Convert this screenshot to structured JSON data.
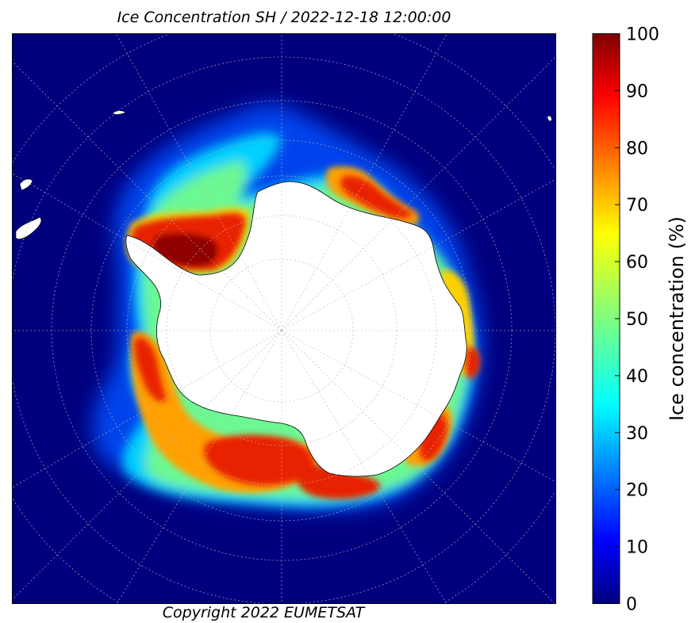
{
  "title": "Ice Concentration SH / 2022-12-18 12:00:00",
  "copyright": "Copyright 2022 EUMETSAT",
  "colorbar": {
    "label": "Ice concentration (%)",
    "ticks": [
      "0",
      "10",
      "20",
      "30",
      "40",
      "50",
      "60",
      "70",
      "80",
      "90",
      "100"
    ],
    "range": [
      0,
      100
    ],
    "colormap": "jet"
  },
  "map": {
    "projection": "south-polar-stereographic",
    "ocean_color": "#00007f",
    "land_color": "#ffffff",
    "graticule": "dotted"
  },
  "chart_data": {
    "type": "heatmap",
    "title": "Ice Concentration SH / 2022-12-18 12:00:00",
    "colorbar_label": "Ice concentration (%)",
    "value_range": [
      0,
      100
    ],
    "colormap": "jet"
  }
}
